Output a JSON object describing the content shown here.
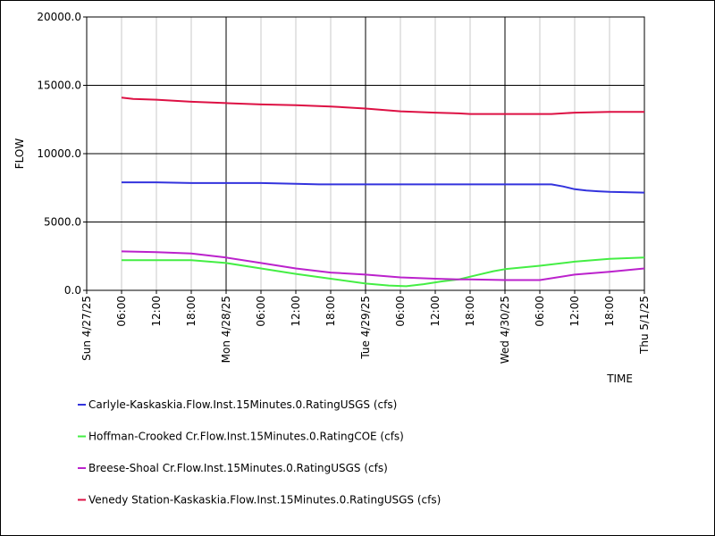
{
  "chart_data": {
    "type": "line",
    "xlabel": "TIME",
    "ylabel": "FLOW",
    "ylim": [
      0,
      20000
    ],
    "y_ticks": [
      {
        "value": 0,
        "label": "0.0"
      },
      {
        "value": 5000,
        "label": "5000.0"
      },
      {
        "value": 10000,
        "label": "10000.0"
      },
      {
        "value": 15000,
        "label": "15000.0"
      },
      {
        "value": 20000,
        "label": "20000.0"
      }
    ],
    "xlim_hours": [
      0,
      96
    ],
    "x_ticks": [
      {
        "hour": 0,
        "label": "Sun 4/27/25",
        "major": true
      },
      {
        "hour": 6,
        "label": "06:00",
        "major": false
      },
      {
        "hour": 12,
        "label": "12:00",
        "major": false
      },
      {
        "hour": 18,
        "label": "18:00",
        "major": false
      },
      {
        "hour": 24,
        "label": "Mon 4/28/25",
        "major": true
      },
      {
        "hour": 30,
        "label": "06:00",
        "major": false
      },
      {
        "hour": 36,
        "label": "12:00",
        "major": false
      },
      {
        "hour": 42,
        "label": "18:00",
        "major": false
      },
      {
        "hour": 48,
        "label": "Tue 4/29/25",
        "major": true
      },
      {
        "hour": 54,
        "label": "06:00",
        "major": false
      },
      {
        "hour": 60,
        "label": "12:00",
        "major": false
      },
      {
        "hour": 66,
        "label": "18:00",
        "major": false
      },
      {
        "hour": 72,
        "label": "Wed 4/30/25",
        "major": true
      },
      {
        "hour": 78,
        "label": "06:00",
        "major": false
      },
      {
        "hour": 84,
        "label": "12:00",
        "major": false
      },
      {
        "hour": 90,
        "label": "18:00",
        "major": false
      },
      {
        "hour": 96,
        "label": "Thu 5/1/25",
        "major": true
      }
    ],
    "series": [
      {
        "name": "Carlyle-Kaskaskia.Flow.Inst.15Minutes.0.RatingUSGS (cfs)",
        "color": "#3333dd",
        "x": [
          6,
          12,
          18,
          24,
          30,
          36,
          40,
          42,
          48,
          54,
          60,
          66,
          72,
          78,
          80,
          82,
          84,
          86,
          88,
          90,
          96
        ],
        "y": [
          7900,
          7900,
          7850,
          7850,
          7850,
          7800,
          7750,
          7750,
          7750,
          7750,
          7750,
          7750,
          7750,
          7750,
          7750,
          7600,
          7400,
          7300,
          7250,
          7200,
          7150
        ]
      },
      {
        "name": "Hoffman-Crooked Cr.Flow.Inst.15Minutes.0.RatingCOE (cfs)",
        "color": "#44ee44",
        "x": [
          6,
          12,
          18,
          24,
          30,
          36,
          42,
          48,
          52,
          55,
          58,
          61,
          64,
          67,
          70,
          72,
          78,
          84,
          90,
          96
        ],
        "y": [
          2200,
          2200,
          2200,
          2000,
          1600,
          1200,
          850,
          500,
          350,
          300,
          450,
          650,
          800,
          1100,
          1400,
          1550,
          1800,
          2100,
          2300,
          2400
        ]
      },
      {
        "name": "Breese-Shoal Cr.Flow.Inst.15Minutes.0.RatingUSGS (cfs)",
        "color": "#bb22cc",
        "x": [
          6,
          12,
          18,
          24,
          30,
          36,
          42,
          48,
          54,
          60,
          64,
          66,
          72,
          78,
          84,
          90,
          96
        ],
        "y": [
          2850,
          2800,
          2700,
          2400,
          2000,
          1600,
          1300,
          1150,
          950,
          850,
          800,
          800,
          750,
          750,
          1150,
          1350,
          1600
        ]
      },
      {
        "name": "Venedy Station-Kaskaskia.Flow.Inst.15Minutes.0.RatingUSGS (cfs)",
        "color": "#dd1144",
        "x": [
          6,
          8,
          12,
          18,
          24,
          30,
          36,
          42,
          48,
          54,
          60,
          64,
          66,
          72,
          78,
          80,
          84,
          90,
          96
        ],
        "y": [
          14100,
          14000,
          13950,
          13800,
          13700,
          13600,
          13550,
          13450,
          13300,
          13100,
          13000,
          12950,
          12900,
          12900,
          12900,
          12900,
          13000,
          13050,
          13050
        ]
      }
    ]
  }
}
